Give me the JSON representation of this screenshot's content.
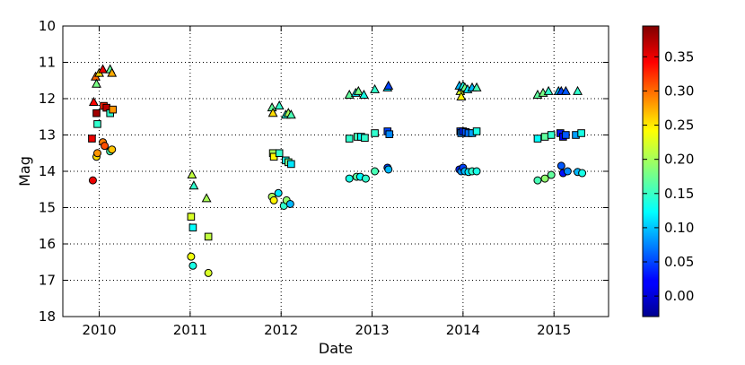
{
  "chart_data": {
    "type": "scatter",
    "xlabel": "Date",
    "ylabel": "Mag",
    "xlim": [
      2009.6,
      2015.6
    ],
    "ylim": [
      18,
      10
    ],
    "y_inverted": true,
    "grid": true,
    "grid_style": "dotted",
    "x_ticks": [
      2010,
      2011,
      2012,
      2013,
      2014,
      2015
    ],
    "x_tick_labels": [
      "2010",
      "2011",
      "2012",
      "2013",
      "2014",
      "2015"
    ],
    "y_ticks": [
      10,
      11,
      12,
      13,
      14,
      15,
      16,
      17,
      18
    ],
    "y_tick_labels": [
      "10",
      "11",
      "12",
      "13",
      "14",
      "15",
      "16",
      "17",
      "18"
    ],
    "colorbar": {
      "colormap": "jet",
      "range": [
        -0.03,
        0.395
      ],
      "ticks": [
        0.0,
        0.05,
        0.1,
        0.15,
        0.2,
        0.25,
        0.3,
        0.35
      ],
      "tick_labels": [
        "0.00",
        "0.05",
        "0.10",
        "0.15",
        "0.20",
        "0.25",
        "0.30",
        "0.35"
      ]
    },
    "series": [
      {
        "marker": "triangle",
        "points": [
          {
            "x": 2009.94,
            "y": 12.1,
            "c": 0.34
          },
          {
            "x": 2009.96,
            "y": 11.4,
            "c": 0.3
          },
          {
            "x": 2009.97,
            "y": 11.6,
            "c": 0.18
          },
          {
            "x": 2010.0,
            "y": 11.3,
            "c": 0.25
          },
          {
            "x": 2010.04,
            "y": 11.2,
            "c": 0.35
          },
          {
            "x": 2010.12,
            "y": 11.2,
            "c": 0.17
          },
          {
            "x": 2010.14,
            "y": 11.3,
            "c": 0.27
          },
          {
            "x": 2011.02,
            "y": 14.1,
            "c": 0.21
          },
          {
            "x": 2011.04,
            "y": 14.4,
            "c": 0.15
          },
          {
            "x": 2011.18,
            "y": 14.75,
            "c": 0.2
          },
          {
            "x": 2011.9,
            "y": 12.25,
            "c": 0.17
          },
          {
            "x": 2011.91,
            "y": 12.4,
            "c": 0.25
          },
          {
            "x": 2011.98,
            "y": 12.2,
            "c": 0.15
          },
          {
            "x": 2012.05,
            "y": 12.45,
            "c": 0.14
          },
          {
            "x": 2012.08,
            "y": 12.4,
            "c": 0.2
          },
          {
            "x": 2012.11,
            "y": 12.45,
            "c": 0.16
          },
          {
            "x": 2012.75,
            "y": 11.9,
            "c": 0.17
          },
          {
            "x": 2012.82,
            "y": 11.85,
            "c": 0.12
          },
          {
            "x": 2012.85,
            "y": 11.8,
            "c": 0.18
          },
          {
            "x": 2012.91,
            "y": 11.9,
            "c": 0.14
          },
          {
            "x": 2013.03,
            "y": 11.75,
            "c": 0.15
          },
          {
            "x": 2013.17,
            "y": 11.7,
            "c": 0.12
          },
          {
            "x": 2013.18,
            "y": 11.65,
            "c": 0.05
          },
          {
            "x": 2013.96,
            "y": 11.65,
            "c": 0.1
          },
          {
            "x": 2013.97,
            "y": 11.8,
            "c": 0.22
          },
          {
            "x": 2013.98,
            "y": 11.95,
            "c": 0.24
          },
          {
            "x": 2013.99,
            "y": 11.7,
            "c": 0.08
          },
          {
            "x": 2014.0,
            "y": 11.65,
            "c": 0.14
          },
          {
            "x": 2014.02,
            "y": 11.7,
            "c": 0.18
          },
          {
            "x": 2014.05,
            "y": 11.75,
            "c": 0.12
          },
          {
            "x": 2014.1,
            "y": 11.7,
            "c": 0.1
          },
          {
            "x": 2014.15,
            "y": 11.7,
            "c": 0.16
          },
          {
            "x": 2014.82,
            "y": 11.9,
            "c": 0.17
          },
          {
            "x": 2014.88,
            "y": 11.85,
            "c": 0.18
          },
          {
            "x": 2014.94,
            "y": 11.8,
            "c": 0.15
          },
          {
            "x": 2015.05,
            "y": 11.8,
            "c": 0.1
          },
          {
            "x": 2015.08,
            "y": 11.8,
            "c": 0.05
          },
          {
            "x": 2015.13,
            "y": 11.8,
            "c": 0.06
          },
          {
            "x": 2015.26,
            "y": 11.8,
            "c": 0.15
          }
        ]
      },
      {
        "marker": "square",
        "points": [
          {
            "x": 2009.92,
            "y": 13.1,
            "c": 0.35
          },
          {
            "x": 2009.97,
            "y": 12.4,
            "c": 0.38
          },
          {
            "x": 2009.98,
            "y": 12.7,
            "c": 0.15
          },
          {
            "x": 2010.05,
            "y": 12.2,
            "c": 0.33
          },
          {
            "x": 2010.08,
            "y": 12.25,
            "c": 0.37
          },
          {
            "x": 2010.12,
            "y": 12.4,
            "c": 0.15
          },
          {
            "x": 2010.15,
            "y": 12.3,
            "c": 0.28
          },
          {
            "x": 2011.01,
            "y": 15.25,
            "c": 0.22
          },
          {
            "x": 2011.03,
            "y": 15.55,
            "c": 0.13
          },
          {
            "x": 2011.2,
            "y": 15.8,
            "c": 0.21
          },
          {
            "x": 2011.91,
            "y": 13.5,
            "c": 0.2
          },
          {
            "x": 2011.92,
            "y": 13.6,
            "c": 0.24
          },
          {
            "x": 2011.98,
            "y": 13.5,
            "c": 0.15
          },
          {
            "x": 2012.05,
            "y": 13.7,
            "c": 0.14
          },
          {
            "x": 2012.08,
            "y": 13.75,
            "c": 0.18
          },
          {
            "x": 2012.11,
            "y": 13.8,
            "c": 0.12
          },
          {
            "x": 2012.75,
            "y": 13.1,
            "c": 0.15
          },
          {
            "x": 2012.84,
            "y": 13.05,
            "c": 0.16
          },
          {
            "x": 2012.88,
            "y": 13.05,
            "c": 0.13
          },
          {
            "x": 2012.92,
            "y": 13.08,
            "c": 0.15
          },
          {
            "x": 2013.03,
            "y": 12.95,
            "c": 0.15
          },
          {
            "x": 2013.17,
            "y": 12.9,
            "c": 0.05
          },
          {
            "x": 2013.19,
            "y": 12.98,
            "c": 0.08
          },
          {
            "x": 2013.97,
            "y": 12.9,
            "c": 0.05
          },
          {
            "x": 2013.98,
            "y": 12.95,
            "c": 0.08
          },
          {
            "x": 2014.0,
            "y": 12.9,
            "c": 0.04
          },
          {
            "x": 2014.03,
            "y": 12.92,
            "c": 0.06
          },
          {
            "x": 2014.06,
            "y": 12.95,
            "c": 0.07
          },
          {
            "x": 2014.1,
            "y": 12.95,
            "c": 0.09
          },
          {
            "x": 2014.15,
            "y": 12.9,
            "c": 0.14
          },
          {
            "x": 2014.82,
            "y": 13.1,
            "c": 0.13
          },
          {
            "x": 2014.9,
            "y": 13.05,
            "c": 0.17
          },
          {
            "x": 2014.97,
            "y": 13.0,
            "c": 0.15
          },
          {
            "x": 2015.07,
            "y": 12.95,
            "c": 0.03
          },
          {
            "x": 2015.1,
            "y": 13.05,
            "c": 0.02
          },
          {
            "x": 2015.13,
            "y": 13.0,
            "c": 0.06
          },
          {
            "x": 2015.24,
            "y": 13.0,
            "c": 0.09
          },
          {
            "x": 2015.3,
            "y": 12.95,
            "c": 0.14
          }
        ]
      },
      {
        "marker": "circle",
        "points": [
          {
            "x": 2009.93,
            "y": 14.25,
            "c": 0.35
          },
          {
            "x": 2009.97,
            "y": 13.6,
            "c": 0.25
          },
          {
            "x": 2009.98,
            "y": 13.5,
            "c": 0.28
          },
          {
            "x": 2010.04,
            "y": 13.2,
            "c": 0.29
          },
          {
            "x": 2010.06,
            "y": 13.3,
            "c": 0.31
          },
          {
            "x": 2010.12,
            "y": 13.45,
            "c": 0.16
          },
          {
            "x": 2010.14,
            "y": 13.4,
            "c": 0.26
          },
          {
            "x": 2011.01,
            "y": 16.35,
            "c": 0.23
          },
          {
            "x": 2011.03,
            "y": 16.6,
            "c": 0.14
          },
          {
            "x": 2011.2,
            "y": 16.8,
            "c": 0.22
          },
          {
            "x": 2011.9,
            "y": 14.7,
            "c": 0.2
          },
          {
            "x": 2011.92,
            "y": 14.8,
            "c": 0.24
          },
          {
            "x": 2011.97,
            "y": 14.6,
            "c": 0.12
          },
          {
            "x": 2012.03,
            "y": 14.95,
            "c": 0.15
          },
          {
            "x": 2012.06,
            "y": 14.8,
            "c": 0.19
          },
          {
            "x": 2012.1,
            "y": 14.9,
            "c": 0.1
          },
          {
            "x": 2012.75,
            "y": 14.2,
            "c": 0.14
          },
          {
            "x": 2012.83,
            "y": 14.15,
            "c": 0.17
          },
          {
            "x": 2012.87,
            "y": 14.15,
            "c": 0.13
          },
          {
            "x": 2012.93,
            "y": 14.2,
            "c": 0.15
          },
          {
            "x": 2013.03,
            "y": 14.0,
            "c": 0.16
          },
          {
            "x": 2013.17,
            "y": 13.9,
            "c": 0.05
          },
          {
            "x": 2013.18,
            "y": 13.95,
            "c": 0.1
          },
          {
            "x": 2013.96,
            "y": 13.95,
            "c": 0.04
          },
          {
            "x": 2013.98,
            "y": 14.0,
            "c": 0.08
          },
          {
            "x": 2014.0,
            "y": 13.9,
            "c": 0.05
          },
          {
            "x": 2014.02,
            "y": 14.0,
            "c": 0.1
          },
          {
            "x": 2014.06,
            "y": 14.02,
            "c": 0.12
          },
          {
            "x": 2014.1,
            "y": 14.0,
            "c": 0.15
          },
          {
            "x": 2014.15,
            "y": 14.0,
            "c": 0.14
          },
          {
            "x": 2014.82,
            "y": 14.25,
            "c": 0.16
          },
          {
            "x": 2014.9,
            "y": 14.2,
            "c": 0.19
          },
          {
            "x": 2014.97,
            "y": 14.1,
            "c": 0.17
          },
          {
            "x": 2015.08,
            "y": 13.85,
            "c": 0.06
          },
          {
            "x": 2015.1,
            "y": 14.05,
            "c": 0.03
          },
          {
            "x": 2015.15,
            "y": 14.0,
            "c": 0.08
          },
          {
            "x": 2015.26,
            "y": 14.02,
            "c": 0.1
          },
          {
            "x": 2015.31,
            "y": 14.05,
            "c": 0.14
          }
        ]
      }
    ]
  }
}
